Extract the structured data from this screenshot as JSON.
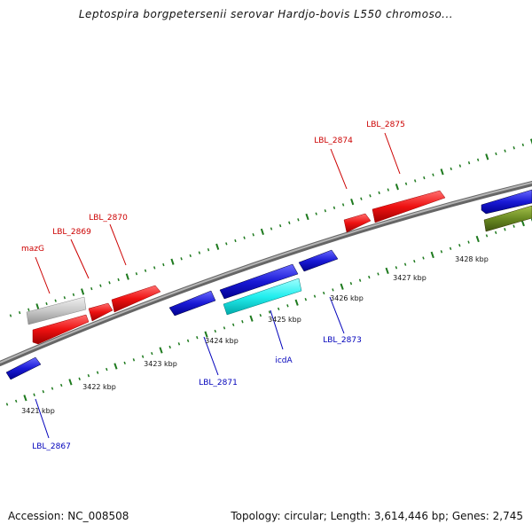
{
  "title": "Leptospira borgpetersenii serovar Hardjo-bovis L550 chromoso...",
  "footer": {
    "accession": "Accession: NC_008508",
    "stats": "Topology: circular; Length: 3,614,446 bp; Genes: 2,745"
  },
  "colors": {
    "forward_gene": "#ee1111",
    "reverse_gene": "#1a1ad6",
    "forward_label": "#cc0000",
    "reverse_label": "#0000bb",
    "tick": "#1e7a1e",
    "backbone": "#888888",
    "highlight_cyan": "#22eeee",
    "grey_gene": "#c8c8c8",
    "olive_gene": "#6a8a22"
  },
  "scale_labels": [
    "3421 kbp",
    "3422 kbp",
    "3423 kbp",
    "3424 kbp",
    "3425 kbp",
    "3426 kbp",
    "3427 kbp",
    "3428 kbp"
  ],
  "gene_labels": {
    "mazG": "mazG",
    "LBL_2869": "LBL_2869",
    "LBL_2870": "LBL_2870",
    "LBL_2874": "LBL_2874",
    "LBL_2875": "LBL_2875",
    "LBL_2867": "LBL_2867",
    "LBL_2871": "LBL_2871",
    "icdA": "icdA",
    "LBL_2873": "LBL_2873"
  }
}
